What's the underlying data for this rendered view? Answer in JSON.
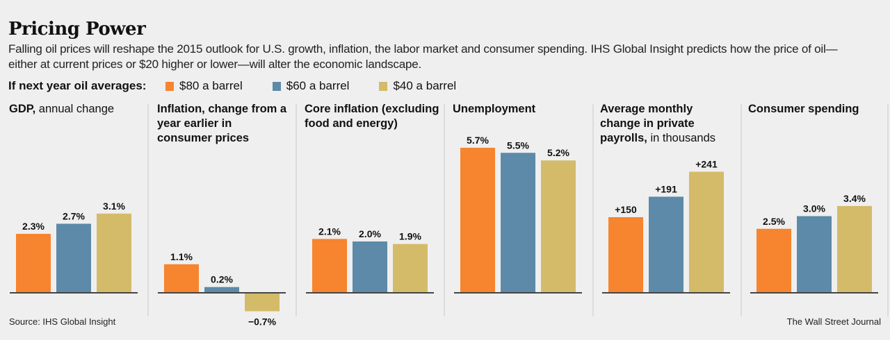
{
  "header": {
    "title": "Pricing Power",
    "subtitle": "Falling oil prices will reshape the 2015 outlook for U.S. growth, inflation, the labor market and consumer spending. IHS Global Insight predicts how the price of oil—either at current prices or $20 higher or lower—will alter the economic landscape."
  },
  "legend": {
    "label": "If next year oil averages:",
    "items": [
      {
        "label": "$80 a barrel",
        "color": "#f7842e"
      },
      {
        "label": "$60 a barrel",
        "color": "#5d8aa8"
      },
      {
        "label": "$40 a barrel",
        "color": "#d4bb6a"
      }
    ]
  },
  "footer": {
    "source": "Source: IHS Global Insight",
    "credit": "The Wall Street Journal"
  },
  "chart_data": [
    {
      "type": "bar",
      "title_bold": "GDP,",
      "title_rest": " annual change",
      "categories": [
        "$80 a barrel",
        "$60 a barrel",
        "$40 a barrel"
      ],
      "values": [
        2.3,
        2.7,
        3.1
      ],
      "labels": [
        "2.3%",
        "2.7%",
        "3.1%"
      ],
      "unit": "%"
    },
    {
      "type": "bar",
      "title_bold": "Inflation, change from a year earlier in consumer prices",
      "title_rest": "",
      "categories": [
        "$80 a barrel",
        "$60 a barrel",
        "$40 a barrel"
      ],
      "values": [
        1.1,
        0.2,
        -0.7
      ],
      "labels": [
        "1.1%",
        "0.2%",
        "−0.7%"
      ],
      "unit": "%"
    },
    {
      "type": "bar",
      "title_bold": "Core inflation (excluding food and energy)",
      "title_rest": "",
      "categories": [
        "$80 a barrel",
        "$60 a barrel",
        "$40 a barrel"
      ],
      "values": [
        2.1,
        2.0,
        1.9
      ],
      "labels": [
        "2.1%",
        "2.0%",
        "1.9%"
      ],
      "unit": "%"
    },
    {
      "type": "bar",
      "title_bold": "Unemployment",
      "title_rest": "",
      "categories": [
        "$80 a barrel",
        "$60 a barrel",
        "$40 a barrel"
      ],
      "values": [
        5.7,
        5.5,
        5.2
      ],
      "labels": [
        "5.7%",
        "5.5%",
        "5.2%"
      ],
      "unit": "%"
    },
    {
      "type": "bar",
      "title_bold": "Average monthly change in private payrolls,",
      "title_rest": " in thousands",
      "categories": [
        "$80 a barrel",
        "$60 a barrel",
        "$40 a barrel"
      ],
      "values": [
        150,
        191,
        241
      ],
      "labels": [
        "+150",
        "+191",
        "+241"
      ],
      "unit": "thousands"
    },
    {
      "type": "bar",
      "title_bold": "Consumer spending",
      "title_rest": "",
      "categories": [
        "$80 a barrel",
        "$60 a barrel",
        "$40 a barrel"
      ],
      "values": [
        2.5,
        3.0,
        3.4
      ],
      "labels": [
        "2.5%",
        "3.0%",
        "3.4%"
      ],
      "unit": "%"
    }
  ]
}
